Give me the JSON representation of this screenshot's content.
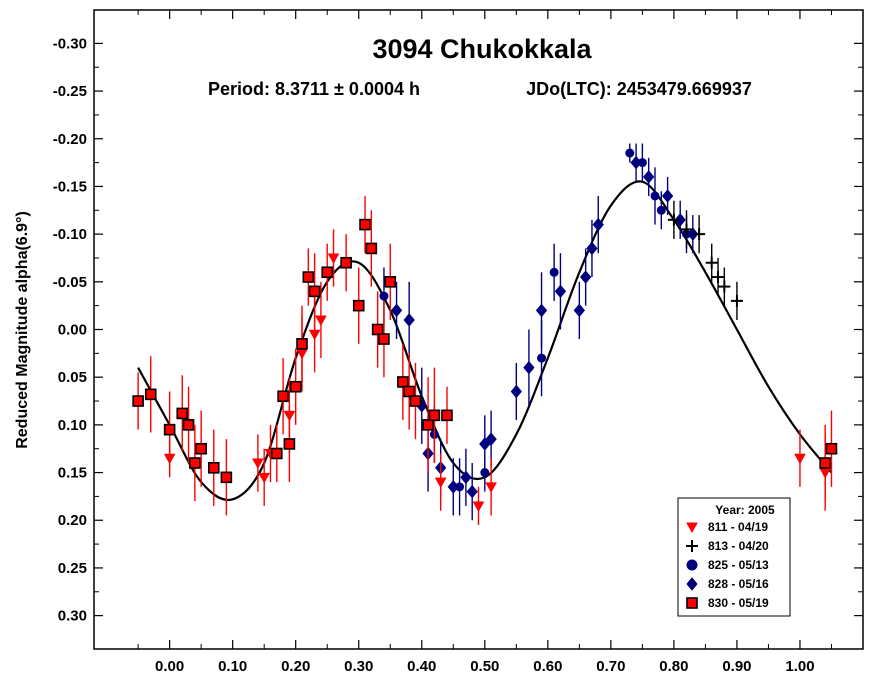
{
  "chart_data": {
    "type": "scatter",
    "title": "3094 Chukokkala",
    "period_text": "Period: 8.3711 ± 0.0004 h",
    "epoch_text": "JDo(LTC): 2453479.669937",
    "xlabel": "",
    "ylabel": "Reduced Magnitude alpha(6.9°)",
    "xlim": [
      -0.12,
      1.1
    ],
    "ylim": [
      0.335,
      -0.335
    ],
    "y_inverted": true,
    "x_ticks": [
      {
        "value": 0.0,
        "label": "0.00"
      },
      {
        "value": 0.1,
        "label": "0.10"
      },
      {
        "value": 0.2,
        "label": "0.20"
      },
      {
        "value": 0.3,
        "label": "0.30"
      },
      {
        "value": 0.4,
        "label": "0.40"
      },
      {
        "value": 0.5,
        "label": "0.50"
      },
      {
        "value": 0.6,
        "label": "0.60"
      },
      {
        "value": 0.7,
        "label": "0.70"
      },
      {
        "value": 0.8,
        "label": "0.80"
      },
      {
        "value": 0.9,
        "label": "0.90"
      },
      {
        "value": 1.0,
        "label": "1.00"
      }
    ],
    "y_ticks": [
      {
        "value": -0.3,
        "label": "-0.30"
      },
      {
        "value": -0.25,
        "label": "-0.25"
      },
      {
        "value": -0.2,
        "label": "-0.20"
      },
      {
        "value": -0.15,
        "label": "-0.15"
      },
      {
        "value": -0.1,
        "label": "-0.10"
      },
      {
        "value": -0.05,
        "label": "-0.05"
      },
      {
        "value": 0.0,
        "label": "0.00"
      },
      {
        "value": 0.05,
        "label": "0.05"
      },
      {
        "value": 0.1,
        "label": "0.10"
      },
      {
        "value": 0.15,
        "label": "0.15"
      },
      {
        "value": 0.2,
        "label": "0.20"
      },
      {
        "value": 0.25,
        "label": "0.25"
      },
      {
        "value": 0.3,
        "label": "0.30"
      }
    ],
    "legend": {
      "title": "Year: 2005",
      "position": "bottom-right",
      "entries": [
        "811 - 04/19",
        "813 - 04/20",
        "825 - 05/13",
        "828 - 05/16",
        "830 - 05/19"
      ]
    },
    "fit_curve": {
      "name": "Fourier fit",
      "x": [
        -0.05,
        0.0,
        0.05,
        0.1,
        0.15,
        0.2,
        0.25,
        0.3,
        0.35,
        0.4,
        0.45,
        0.5,
        0.55,
        0.6,
        0.65,
        0.7,
        0.75,
        0.8,
        0.85,
        0.9,
        0.95,
        1.0,
        1.05
      ],
      "y": [
        0.04,
        0.1,
        0.16,
        0.178,
        0.14,
        0.03,
        -0.05,
        -0.07,
        -0.02,
        0.07,
        0.14,
        0.155,
        0.11,
        0.03,
        -0.06,
        -0.13,
        -0.155,
        -0.115,
        -0.06,
        0.0,
        0.06,
        0.11,
        0.15
      ]
    },
    "series": [
      {
        "name": "811 - 04/19",
        "color": "#ff0000",
        "marker": "triangle-down",
        "x": [
          0.0,
          0.14,
          0.15,
          0.16,
          0.19,
          0.21,
          0.23,
          0.24,
          0.26,
          0.43,
          0.49,
          0.51,
          1.0,
          1.04
        ],
        "y": [
          0.135,
          0.14,
          0.155,
          0.13,
          0.09,
          0.025,
          0.005,
          -0.01,
          -0.075,
          0.16,
          0.185,
          0.165,
          0.135,
          0.15
        ],
        "err": [
          0.02,
          0.03,
          0.03,
          0.03,
          0.04,
          0.04,
          0.04,
          0.04,
          0.03,
          0.03,
          0.02,
          0.03,
          0.03,
          0.04
        ]
      },
      {
        "name": "813 - 04/20",
        "color": "#000000",
        "marker": "plus",
        "x": [
          0.8,
          0.82,
          0.84,
          0.86,
          0.87,
          0.88,
          0.9
        ],
        "y": [
          -0.115,
          -0.105,
          -0.1,
          -0.07,
          -0.055,
          -0.045,
          -0.03
        ],
        "err": [
          0.02,
          0.02,
          0.02,
          0.02,
          0.02,
          0.02,
          0.02
        ]
      },
      {
        "name": "825 - 05/13",
        "color": "#00007f",
        "marker": "circle",
        "x": [
          0.34,
          0.42,
          0.46,
          0.5,
          0.59,
          0.61,
          0.73,
          0.75,
          0.77,
          0.78,
          0.82
        ],
        "y": [
          -0.035,
          0.11,
          0.165,
          0.15,
          0.03,
          -0.06,
          -0.185,
          -0.175,
          -0.14,
          -0.125,
          -0.1
        ],
        "err": [
          0.03,
          0.03,
          0.03,
          0.02,
          0.04,
          0.03,
          0.01,
          0.02,
          0.03,
          0.02,
          0.02
        ]
      },
      {
        "name": "828 - 05/16",
        "color": "#00007f",
        "marker": "diamond",
        "x": [
          0.36,
          0.38,
          0.4,
          0.41,
          0.43,
          0.45,
          0.47,
          0.48,
          0.5,
          0.51,
          0.55,
          0.57,
          0.59,
          0.62,
          0.65,
          0.66,
          0.67,
          0.68,
          0.74,
          0.76,
          0.79,
          0.81,
          0.83
        ],
        "y": [
          -0.02,
          -0.01,
          0.08,
          0.13,
          0.145,
          0.165,
          0.155,
          0.17,
          0.12,
          0.115,
          0.065,
          0.04,
          -0.02,
          -0.04,
          -0.02,
          -0.055,
          -0.085,
          -0.11,
          -0.175,
          -0.16,
          -0.14,
          -0.115,
          -0.1
        ],
        "err": [
          0.03,
          0.04,
          0.04,
          0.04,
          0.03,
          0.03,
          0.03,
          0.03,
          0.03,
          0.03,
          0.03,
          0.04,
          0.04,
          0.04,
          0.03,
          0.03,
          0.03,
          0.03,
          0.02,
          0.02,
          0.02,
          0.02,
          0.02
        ]
      },
      {
        "name": "830 - 05/19",
        "color": "#ff0000",
        "marker": "square",
        "x": [
          -0.05,
          -0.03,
          0.0,
          0.02,
          0.03,
          0.04,
          0.05,
          0.07,
          0.09,
          0.17,
          0.18,
          0.19,
          0.2,
          0.21,
          0.22,
          0.23,
          0.25,
          0.28,
          0.3,
          0.31,
          0.32,
          0.33,
          0.34,
          0.35,
          0.37,
          0.38,
          0.39,
          0.41,
          0.42,
          0.44,
          1.04,
          1.05
        ],
        "y": [
          0.075,
          0.068,
          0.105,
          0.088,
          0.1,
          0.14,
          0.125,
          0.145,
          0.155,
          0.13,
          0.07,
          0.12,
          0.06,
          0.015,
          -0.055,
          -0.04,
          -0.06,
          -0.07,
          -0.025,
          -0.11,
          -0.085,
          0.0,
          0.01,
          -0.05,
          0.055,
          0.065,
          0.075,
          0.1,
          0.09,
          0.09,
          0.14,
          0.125
        ],
        "err": [
          0.03,
          0.04,
          0.04,
          0.04,
          0.04,
          0.04,
          0.04,
          0.04,
          0.04,
          0.03,
          0.04,
          0.04,
          0.04,
          0.04,
          0.03,
          0.04,
          0.03,
          0.03,
          0.04,
          0.03,
          0.04,
          0.04,
          0.04,
          0.04,
          0.04,
          0.04,
          0.04,
          0.05,
          0.05,
          0.03,
          0.04,
          0.04
        ]
      }
    ]
  }
}
